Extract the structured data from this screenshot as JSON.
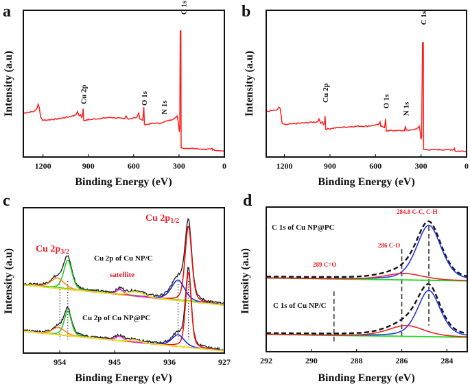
{
  "chart_data": [
    {
      "panel": "a",
      "type": "line",
      "xlabel": "Binding Energy (eV)",
      "ylabel": "Intensity (a.u)",
      "xlim": [
        1330,
        0
      ],
      "ylim": [
        0,
        100
      ],
      "xticks": [
        1200,
        900,
        600,
        300,
        0
      ],
      "grid": false,
      "color": "#ff1a1a",
      "annotations": [
        {
          "text": "Cu 2p",
          "x": 932,
          "y": 36
        },
        {
          "text": "O 1s",
          "x": 532,
          "y": 35
        },
        {
          "text": "N 1s",
          "x": 400,
          "y": 29
        },
        {
          "text": "C 1s",
          "x": 270,
          "y": 97
        }
      ],
      "series": [
        {
          "points": [
            [
              1330,
              30
            ],
            [
              1260,
              31
            ],
            [
              1240,
              33
            ],
            [
              1232,
              36
            ],
            [
              1225,
              34
            ],
            [
              1215,
              27
            ],
            [
              1200,
              25
            ],
            [
              1100,
              26
            ],
            [
              1000,
              28
            ],
            [
              980,
              29
            ],
            [
              972,
              31
            ],
            [
              960,
              28
            ],
            [
              950,
              29
            ],
            [
              945,
              27
            ],
            [
              938,
              28
            ],
            [
              934,
              33
            ],
            [
              930,
              25
            ],
            [
              850,
              26
            ],
            [
              750,
              27
            ],
            [
              660,
              26
            ],
            [
              650,
              28
            ],
            [
              640,
              26
            ],
            [
              580,
              27
            ],
            [
              566,
              30
            ],
            [
              560,
              26
            ],
            [
              540,
              25
            ],
            [
              533,
              34
            ],
            [
              529,
              22
            ],
            [
              470,
              23
            ],
            [
              420,
              23
            ],
            [
              400,
              24
            ],
            [
              360,
              25
            ],
            [
              320,
              27
            ],
            [
              313,
              28
            ],
            [
              305,
              24
            ],
            [
              298,
              17
            ],
            [
              295,
              19
            ],
            [
              292,
              86
            ],
            [
              288,
              86
            ],
            [
              286,
              6
            ],
            [
              200,
              6
            ],
            [
              120,
              5
            ],
            [
              82,
              6
            ],
            [
              78,
              5
            ],
            [
              0,
              4
            ]
          ]
        }
      ]
    },
    {
      "panel": "b",
      "type": "line",
      "xlabel": "Binding Energy (eV)",
      "ylabel": "Intensity (a.u)",
      "xlim": [
        1320,
        0
      ],
      "ylim": [
        0,
        100
      ],
      "xticks": [
        1200,
        900,
        600,
        300,
        0
      ],
      "grid": false,
      "color": "#ff1a1a",
      "annotations": [
        {
          "text": "Cu 2p",
          "x": 932,
          "y": 37
        },
        {
          "text": "O 1s",
          "x": 532,
          "y": 33
        },
        {
          "text": "N 1s",
          "x": 400,
          "y": 28
        },
        {
          "text": "C 1s",
          "x": 285,
          "y": 90
        }
      ],
      "series": [
        {
          "points": [
            [
              1320,
              31
            ],
            [
              1250,
              32
            ],
            [
              1235,
              34
            ],
            [
              1228,
              33
            ],
            [
              1215,
              23
            ],
            [
              1200,
              22
            ],
            [
              1100,
              23
            ],
            [
              980,
              24
            ],
            [
              972,
              26
            ],
            [
              962,
              23
            ],
            [
              950,
              24
            ],
            [
              944,
              22
            ],
            [
              936,
              23
            ],
            [
              932,
              28
            ],
            [
              928,
              19
            ],
            [
              850,
              20
            ],
            [
              720,
              21
            ],
            [
              660,
              21
            ],
            [
              580,
              22
            ],
            [
              570,
              24
            ],
            [
              565,
              21
            ],
            [
              540,
              20
            ],
            [
              533,
              26
            ],
            [
              529,
              18
            ],
            [
              460,
              18
            ],
            [
              410,
              18
            ],
            [
              402,
              21
            ],
            [
              398,
              18
            ],
            [
              330,
              19
            ],
            [
              312,
              21
            ],
            [
              305,
              17
            ],
            [
              300,
              12
            ],
            [
              296,
              14
            ],
            [
              290,
              78
            ],
            [
              285,
              78
            ],
            [
              283,
              5
            ],
            [
              200,
              5
            ],
            [
              160,
              5
            ],
            [
              85,
              5
            ],
            [
              80,
              6
            ],
            [
              75,
              4
            ],
            [
              0,
              4
            ]
          ]
        }
      ]
    },
    {
      "panel": "c",
      "type": "line",
      "xlabel": "Binding Energy (eV)",
      "ylabel": "Intensity (a.u)",
      "xlim": [
        960,
        927
      ],
      "ylim": [
        0,
        100
      ],
      "xticks": [
        954,
        945,
        936,
        927
      ],
      "grid": false,
      "labels": {
        "cu2p32_main": "Cu 2p",
        "cu2p32_sub": "3/2",
        "cu2p12_main": "Cu 2p",
        "cu2p12_sub": "1/2",
        "satellite": "satellite",
        "spectrum_top": "Cu 2p of Cu NP/C",
        "spectrum_bottom": "Cu 2p of Cu NP@PC"
      },
      "reference_lines_eV": [
        954.0,
        952.7,
        934.6,
        932.9
      ],
      "spectra": [
        {
          "name": "Cu 2p of Cu NP/C",
          "baseline": [
            47,
            33
          ],
          "background_colors": [
            "#ffee00",
            "#33dd11"
          ],
          "components": [
            {
              "center": 932.9,
              "amp": 52,
              "fwhm": 1.3,
              "color": "#ee1111"
            },
            {
              "center": 934.6,
              "amp": 14,
              "fwhm": 2.6,
              "color": "#2222ee"
            },
            {
              "center": 952.7,
              "amp": 20,
              "fwhm": 1.6,
              "color": "#22cc22"
            },
            {
              "center": 954.4,
              "amp": 7,
              "fwhm": 2.6,
              "color": "#ff8822"
            },
            {
              "center": 944.1,
              "amp": 3.5,
              "fwhm": 1.4,
              "color": "#ee22ee"
            },
            {
              "center": 941.5,
              "amp": 3,
              "fwhm": 3.0,
              "color": "#eeee11"
            }
          ]
        },
        {
          "name": "Cu 2p of Cu NP@PC",
          "baseline": [
            15,
            1.5
          ],
          "background_colors": [
            "#ffee00"
          ],
          "components": [
            {
              "center": 932.9,
              "amp": 52,
              "fwhm": 1.1,
              "color": "#ee1111"
            },
            {
              "center": 934.6,
              "amp": 8,
              "fwhm": 2.4,
              "color": "#2222ee"
            },
            {
              "center": 952.7,
              "amp": 17,
              "fwhm": 1.4,
              "color": "#22cc22"
            },
            {
              "center": 954.2,
              "amp": 5,
              "fwhm": 2.4,
              "color": "#ff8822"
            },
            {
              "center": 944.2,
              "amp": 3,
              "fwhm": 1.6,
              "color": "#ee22ee"
            },
            {
              "center": 941.8,
              "amp": 1.5,
              "fwhm": 2.5,
              "color": "#eeee11"
            }
          ]
        }
      ]
    },
    {
      "panel": "d",
      "type": "line",
      "xlabel": "Binding Energy (eV)",
      "ylabel": "Intensity (a.u)",
      "xlim": [
        292,
        283.1
      ],
      "ylim": [
        0,
        100
      ],
      "xticks": [
        292,
        290,
        288,
        286,
        284
      ],
      "grid": false,
      "labels": {
        "peak_289": "289 C=O",
        "peak_286": "286 C-O",
        "peak_2848": "284.8 C-C, C-H",
        "spectrum_top": "C 1s of Cu NP@PC",
        "spectrum_bottom": "C 1s of Cu NP/C"
      },
      "reference_lines_eV": [
        289,
        286,
        284.8
      ],
      "spectra": [
        {
          "name": "C 1s of Cu NP@PC",
          "baseline": [
            51,
            49
          ],
          "background_colors": [
            "#22dd22"
          ],
          "components": [
            {
              "center": 284.8,
              "amp": 38,
              "fwhm": 1.3,
              "color": "#2233ee"
            },
            {
              "center": 285.9,
              "amp": 4.5,
              "fwhm": 2.0,
              "color": "#ee2222"
            }
          ]
        },
        {
          "name": "C 1s of Cu NP/C",
          "baseline": [
            12,
            10
          ],
          "background_colors": [
            "#22dd22"
          ],
          "components": [
            {
              "center": 284.8,
              "amp": 32,
              "fwhm": 1.2,
              "color": "#2233ee"
            },
            {
              "center": 285.8,
              "amp": 7.5,
              "fwhm": 1.9,
              "color": "#ee2222"
            }
          ]
        }
      ]
    }
  ]
}
